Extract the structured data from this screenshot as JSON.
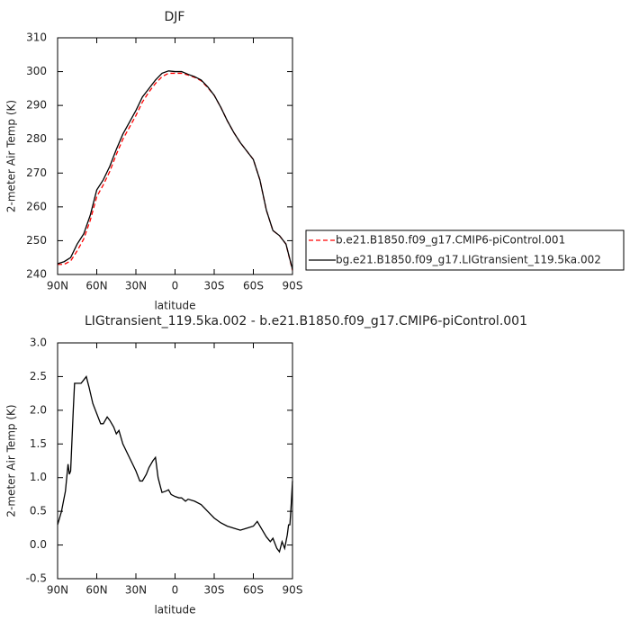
{
  "chart_data": [
    {
      "type": "line",
      "title": "DJF",
      "xlabel": "latitude",
      "ylabel": "2-meter Air Temp (K)",
      "xlim": [
        90,
        -90
      ],
      "ylim": [
        240,
        310
      ],
      "xticks": [
        {
          "value": 90,
          "label": "90N"
        },
        {
          "value": 60,
          "label": "60N"
        },
        {
          "value": 30,
          "label": "30N"
        },
        0,
        {
          "value": -30,
          "label": "30S"
        },
        {
          "value": -60,
          "label": "60S"
        },
        {
          "value": -90,
          "label": "90S"
        }
      ],
      "yticks": [
        240,
        250,
        260,
        270,
        280,
        290,
        300,
        310
      ],
      "legend": "right",
      "x": [
        90,
        85,
        80,
        75,
        70,
        65,
        60,
        55,
        50,
        45,
        40,
        35,
        30,
        25,
        20,
        15,
        10,
        5,
        0,
        -5,
        -10,
        -15,
        -20,
        -25,
        -30,
        -35,
        -40,
        -45,
        -50,
        -55,
        -60,
        -65,
        -70,
        -75,
        -80,
        -85,
        -90
      ],
      "series": [
        {
          "name": "b.e21.B1850.f09_g17.CMIP6-piControl.001",
          "color": "#ff0000",
          "linestyle": "dashed",
          "values": [
            243,
            243,
            244,
            247,
            250.5,
            256,
            263,
            266.5,
            270.5,
            275.5,
            280,
            283.5,
            287,
            291,
            294,
            296.5,
            298.5,
            299.5,
            299.5,
            299.5,
            299,
            298.3,
            297.3,
            295.3,
            293,
            289.5,
            285.5,
            282,
            279,
            276.5,
            274,
            268,
            259,
            253,
            251.5,
            249,
            241.2
          ]
        },
        {
          "name": "bg.e21.B1850.f09_g17.LIGtransient_119.5ka.002",
          "color": "#000000",
          "linestyle": "solid",
          "values": [
            243.2,
            243.8,
            245,
            249,
            252,
            257.5,
            265,
            268,
            272,
            277,
            281.5,
            285,
            288.5,
            292.5,
            295,
            297.5,
            299.5,
            300.2,
            300,
            300,
            299.2,
            298.5,
            297.5,
            295.5,
            293,
            289.5,
            285.5,
            282,
            279,
            276.5,
            274,
            268,
            259,
            253,
            251.5,
            249,
            241.5
          ]
        }
      ]
    },
    {
      "type": "line",
      "title": "LIGtransient_119.5ka.002 - b.e21.B1850.f09_g17.CMIP6-piControl.001",
      "xlabel": "latitude",
      "ylabel": "2-meter Air Temp (K)",
      "xlim": [
        90,
        -90
      ],
      "ylim": [
        -0.5,
        3.0
      ],
      "xticks": [
        {
          "value": 90,
          "label": "90N"
        },
        {
          "value": 60,
          "label": "60N"
        },
        {
          "value": 30,
          "label": "30N"
        },
        0,
        {
          "value": -30,
          "label": "30S"
        },
        {
          "value": -60,
          "label": "60S"
        },
        {
          "value": -90,
          "label": "90S"
        }
      ],
      "yticks": [
        -0.5,
        {
          "value": 0,
          "label": "0.0"
        },
        0.5,
        {
          "value": 1,
          "label": "1.0"
        },
        1.5,
        {
          "value": 2,
          "label": "2.0"
        },
        2.5,
        {
          "value": 3,
          "label": "3.0"
        }
      ],
      "x": [
        90,
        87,
        84,
        82,
        81,
        80,
        78,
        77,
        75,
        72,
        70,
        68,
        66,
        63,
        60,
        57,
        55,
        52,
        50,
        47,
        45,
        43,
        40,
        35,
        30,
        27,
        25,
        22,
        20,
        17,
        15,
        13,
        11,
        10,
        7,
        5,
        3,
        0,
        -3,
        -5,
        -8,
        -10,
        -15,
        -20,
        -25,
        -30,
        -35,
        -40,
        -45,
        -50,
        -55,
        -60,
        -63,
        -66,
        -70,
        -73,
        -75,
        -78,
        -80,
        -82,
        -84,
        -86,
        -87,
        -88,
        -89,
        -90
      ],
      "series": [
        {
          "color": "#000000",
          "linestyle": "solid",
          "values": [
            0.3,
            0.5,
            0.8,
            1.2,
            1.05,
            1.1,
            2.0,
            2.4,
            2.4,
            2.4,
            2.45,
            2.5,
            2.35,
            2.1,
            1.95,
            1.8,
            1.8,
            1.9,
            1.85,
            1.75,
            1.65,
            1.7,
            1.5,
            1.3,
            1.1,
            0.95,
            0.95,
            1.05,
            1.15,
            1.25,
            1.3,
            1.0,
            0.85,
            0.78,
            0.8,
            0.82,
            0.75,
            0.72,
            0.7,
            0.7,
            0.65,
            0.68,
            0.65,
            0.6,
            0.5,
            0.4,
            0.33,
            0.28,
            0.25,
            0.22,
            0.25,
            0.28,
            0.35,
            0.25,
            0.12,
            0.05,
            0.1,
            -0.05,
            -0.1,
            0.05,
            -0.05,
            0.15,
            0.3,
            0.3,
            0.6,
            0.95
          ]
        }
      ]
    }
  ]
}
